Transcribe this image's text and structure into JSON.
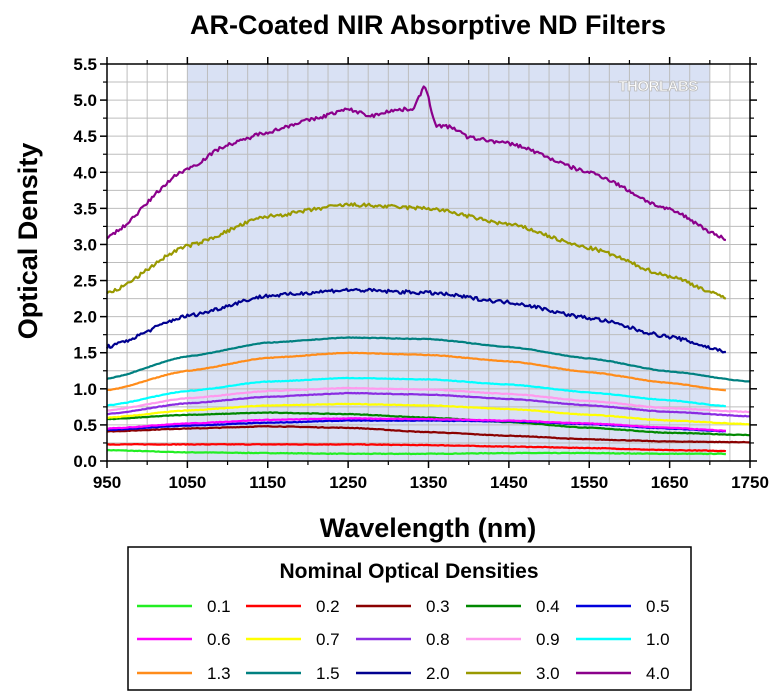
{
  "chart_data": {
    "type": "line",
    "title": "AR-Coated NIR Absorptive ND Filters",
    "xlabel": "Wavelength (nm)",
    "ylabel": "Optical Density",
    "xlim": [
      950,
      1750
    ],
    "ylim": [
      0,
      5.5
    ],
    "xticks": [
      "950",
      "1050",
      "1150",
      "1250",
      "1350",
      "1450",
      "1550",
      "1650",
      "1750"
    ],
    "yticks": [
      "0.0",
      "0.5",
      "1.0",
      "1.5",
      "2.0",
      "2.5",
      "3.0",
      "3.5",
      "4.0",
      "4.5",
      "5.0",
      "5.5"
    ],
    "shaded_region": [
      1050,
      1700
    ],
    "shaded_color": "#d9e1f4",
    "grid": true,
    "watermark": "THORLABS",
    "legend": {
      "title": "Nominal Optical Densities",
      "placement": "bottom"
    },
    "series": [
      {
        "name": "0.1",
        "color": "#22ee22",
        "x": [
          950,
          1050,
          1150,
          1250,
          1350,
          1450,
          1550,
          1650,
          1720
        ],
        "y": [
          0.15,
          0.12,
          0.11,
          0.1,
          0.1,
          0.11,
          0.11,
          0.1,
          0.1
        ]
      },
      {
        "name": "0.2",
        "color": "#ff0000",
        "x": [
          950,
          1050,
          1150,
          1250,
          1350,
          1450,
          1550,
          1650,
          1720
        ],
        "y": [
          0.23,
          0.23,
          0.23,
          0.23,
          0.22,
          0.2,
          0.18,
          0.15,
          0.14
        ]
      },
      {
        "name": "0.3",
        "color": "#8b0000",
        "x": [
          950,
          1050,
          1150,
          1250,
          1350,
          1450,
          1550,
          1650,
          1750
        ],
        "y": [
          0.41,
          0.45,
          0.48,
          0.46,
          0.4,
          0.35,
          0.3,
          0.27,
          0.26
        ]
      },
      {
        "name": "0.4",
        "color": "#008800",
        "x": [
          950,
          1050,
          1150,
          1250,
          1350,
          1450,
          1550,
          1650,
          1750
        ],
        "y": [
          0.58,
          0.64,
          0.67,
          0.65,
          0.6,
          0.54,
          0.46,
          0.39,
          0.36
        ]
      },
      {
        "name": "0.5",
        "color": "#0000dd",
        "x": [
          950,
          1050,
          1150,
          1250,
          1350,
          1450,
          1550,
          1650,
          1720
        ],
        "y": [
          0.43,
          0.49,
          0.53,
          0.56,
          0.56,
          0.55,
          0.51,
          0.45,
          0.41
        ]
      },
      {
        "name": "0.6",
        "color": "#ff00ff",
        "x": [
          950,
          1050,
          1150,
          1250,
          1350,
          1450,
          1550,
          1650,
          1720
        ],
        "y": [
          0.45,
          0.52,
          0.57,
          0.59,
          0.58,
          0.56,
          0.52,
          0.46,
          0.42
        ]
      },
      {
        "name": "0.7",
        "color": "#ffff00",
        "x": [
          950,
          1050,
          1150,
          1250,
          1350,
          1450,
          1550,
          1650,
          1750
        ],
        "y": [
          0.6,
          0.7,
          0.77,
          0.79,
          0.77,
          0.72,
          0.64,
          0.56,
          0.51
        ]
      },
      {
        "name": "0.8",
        "color": "#8a2be2",
        "x": [
          950,
          1050,
          1150,
          1250,
          1350,
          1450,
          1550,
          1650,
          1750
        ],
        "y": [
          0.65,
          0.8,
          0.89,
          0.94,
          0.92,
          0.86,
          0.77,
          0.68,
          0.62
        ]
      },
      {
        "name": "0.9",
        "color": "#ff99ee",
        "x": [
          950,
          1050,
          1150,
          1250,
          1350,
          1450,
          1550,
          1650,
          1750
        ],
        "y": [
          0.7,
          0.87,
          0.97,
          1.01,
          0.99,
          0.93,
          0.83,
          0.73,
          0.68
        ]
      },
      {
        "name": "1.0",
        "color": "#00ffff",
        "x": [
          950,
          1050,
          1150,
          1250,
          1350,
          1450,
          1550,
          1650,
          1720
        ],
        "y": [
          0.77,
          0.97,
          1.1,
          1.15,
          1.13,
          1.06,
          0.95,
          0.84,
          0.76
        ]
      },
      {
        "name": "1.3",
        "color": "#ff8c1a",
        "x": [
          950,
          1050,
          1150,
          1250,
          1350,
          1450,
          1550,
          1650,
          1720
        ],
        "y": [
          0.98,
          1.25,
          1.43,
          1.5,
          1.47,
          1.38,
          1.23,
          1.08,
          0.98
        ]
      },
      {
        "name": "1.5",
        "color": "#008080",
        "x": [
          950,
          1050,
          1150,
          1250,
          1350,
          1450,
          1550,
          1650,
          1750
        ],
        "y": [
          1.14,
          1.45,
          1.64,
          1.71,
          1.69,
          1.58,
          1.42,
          1.24,
          1.1
        ]
      },
      {
        "name": "2.0",
        "color": "#000090",
        "x": [
          950,
          1050,
          1150,
          1250,
          1350,
          1450,
          1550,
          1650,
          1720
        ],
        "y": [
          1.58,
          2.01,
          2.29,
          2.37,
          2.33,
          2.2,
          1.98,
          1.72,
          1.52
        ]
      },
      {
        "name": "3.0",
        "color": "#999900",
        "x": [
          950,
          1050,
          1150,
          1250,
          1350,
          1450,
          1550,
          1650,
          1720
        ],
        "y": [
          2.32,
          2.98,
          3.39,
          3.55,
          3.5,
          3.28,
          2.95,
          2.56,
          2.27
        ]
      },
      {
        "name": "4.0",
        "color": "#8b008b",
        "x": [
          950,
          1050,
          1100,
          1150,
          1200,
          1250,
          1280,
          1300,
          1330,
          1345,
          1360,
          1380,
          1400,
          1450,
          1550,
          1650,
          1720
        ],
        "y": [
          3.1,
          4.05,
          4.38,
          4.56,
          4.72,
          4.87,
          4.78,
          4.85,
          4.88,
          5.18,
          4.65,
          4.62,
          4.48,
          4.4,
          4.0,
          3.48,
          3.08
        ]
      }
    ]
  }
}
